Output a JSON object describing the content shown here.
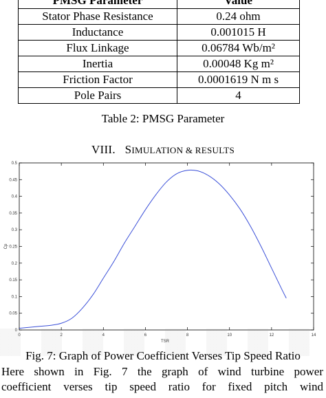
{
  "table": {
    "header": [
      "PMSG Parameter",
      "Value"
    ],
    "rows": [
      {
        "name": "Stator Phase Resistance",
        "value": "0.24 ohm"
      },
      {
        "name": "Inductance",
        "value": "0.001015 H"
      },
      {
        "name": "Flux Linkage",
        "value": "0.06784 Wb/m²"
      },
      {
        "name": "Inertia",
        "value": "0.00048 Kg m²"
      },
      {
        "name": "Friction Factor",
        "value": "0.0001619 N m s"
      },
      {
        "name": "Pole Pairs",
        "value": "4"
      }
    ],
    "caption": "Table 2: PMSG Parameter"
  },
  "section": {
    "numeral": "VIII.",
    "title_first": "S",
    "title_rest": "IMULATION & RESULTS"
  },
  "chart_data": {
    "type": "line",
    "xlabel": "TSR",
    "ylabel": "Cp",
    "xlim": [
      0,
      14
    ],
    "ylim": [
      0,
      0.5
    ],
    "xticks": [
      "0",
      "2",
      "4",
      "6",
      "8",
      "10",
      "12",
      "14"
    ],
    "yticks": [
      "0",
      "0.05",
      "0.1",
      "0.15",
      "0.2",
      "0.25",
      "0.3",
      "0.35",
      "0.4",
      "0.45",
      "0.5"
    ],
    "grid": false,
    "color": "#3a4fd8",
    "series": [
      {
        "x": [
          0,
          0.5,
          1,
          1.5,
          2,
          2.5,
          3,
          3.5,
          4,
          4.5,
          5,
          5.5,
          6,
          6.5,
          7,
          7.5,
          8,
          8.5,
          9,
          9.5,
          10,
          10.5,
          11,
          11.5,
          12,
          12.5,
          12.7
        ],
        "y": [
          0.005,
          0.008,
          0.011,
          0.014,
          0.02,
          0.035,
          0.065,
          0.105,
          0.155,
          0.205,
          0.26,
          0.31,
          0.36,
          0.405,
          0.443,
          0.468,
          0.478,
          0.476,
          0.462,
          0.438,
          0.404,
          0.362,
          0.31,
          0.25,
          0.185,
          0.12,
          0.095
        ]
      }
    ]
  },
  "figure": {
    "caption": "Fig. 7: Graph of Power Coefficient Verses Tip Speed Ratio"
  },
  "body": {
    "line1": "Here shown in Fig. 7 the graph of wind turbine power",
    "line2": "coefficient verses tip speed ratio for fixed pitch wind"
  }
}
